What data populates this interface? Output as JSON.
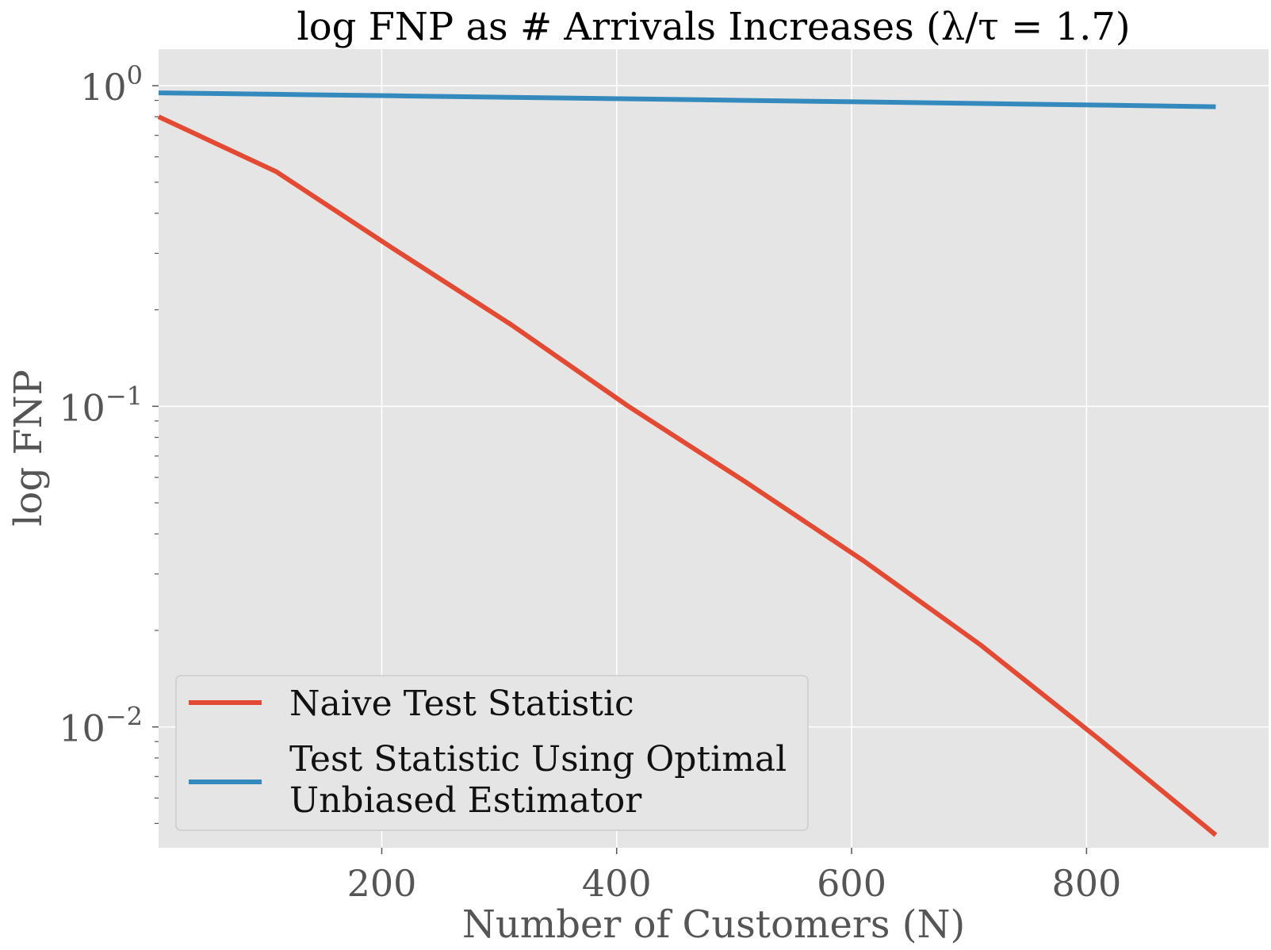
{
  "chart_data": {
    "type": "line",
    "title": "log FNP as # Arrivals Increases (λ/τ = 1.7)",
    "xlabel": "Number of Customers (N)",
    "ylabel": "log FNP",
    "xscale": "linear",
    "yscale": "log",
    "xlim": [
      10,
      955
    ],
    "ylim": [
      0.0042,
      1.3
    ],
    "x_ticks": [
      200,
      400,
      600,
      800
    ],
    "x_tick_labels": [
      "200",
      "400",
      "600",
      "800"
    ],
    "y_ticks": [
      {
        "value": 1,
        "base": "10",
        "exp": "0"
      },
      {
        "value": 0.1,
        "base": "10",
        "exp": "−1"
      },
      {
        "value": 0.01,
        "base": "10",
        "exp": "−2"
      }
    ],
    "grid": true,
    "background": "#E5E5E5",
    "legend_position": "lower-left",
    "series": [
      {
        "name": "Naive Test Statistic",
        "color": "#E24A33",
        "x": [
          10,
          110,
          210,
          310,
          410,
          510,
          610,
          710,
          810,
          910
        ],
        "y": [
          0.8,
          0.54,
          0.31,
          0.18,
          0.1,
          0.058,
          0.033,
          0.018,
          0.0092,
          0.0046
        ]
      },
      {
        "name": "Test Statistic Using Optimal Unbiased Estimator",
        "name_lines": [
          "Test Statistic Using Optimal",
          "Unbiased Estimator"
        ],
        "color": "#348ABD",
        "x": [
          10,
          110,
          210,
          310,
          410,
          510,
          610,
          710,
          810,
          910
        ],
        "y": [
          0.95,
          0.94,
          0.93,
          0.92,
          0.91,
          0.9,
          0.89,
          0.88,
          0.87,
          0.86
        ]
      }
    ]
  }
}
